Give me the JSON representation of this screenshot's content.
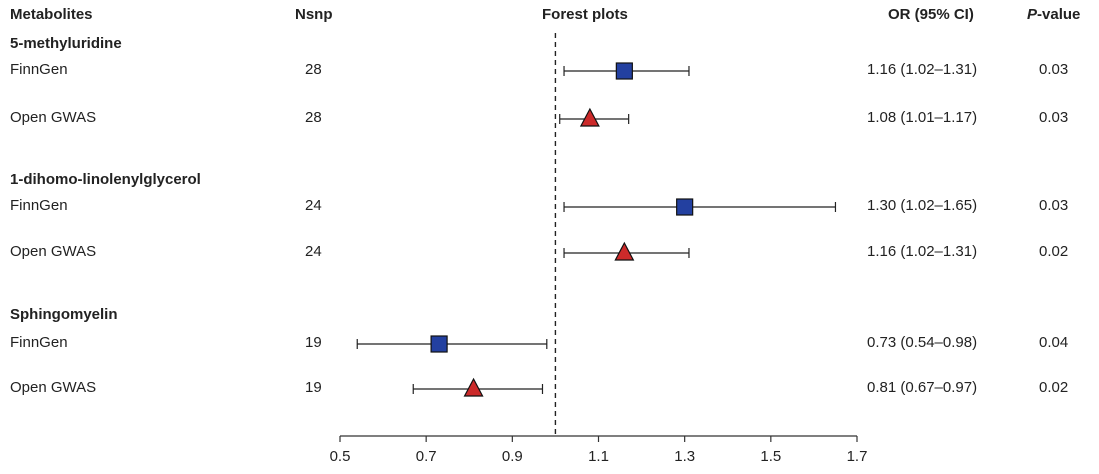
{
  "headers": {
    "metabolites": "Metabolites",
    "nsnp": "Nsnp",
    "forest": "Forest plots",
    "or": "OR (95% CI)",
    "p_italic": "P",
    "p_rest": "-value"
  },
  "groups": [
    {
      "name": "5-methyluridine",
      "rows": [
        {
          "label": "FinnGen",
          "nsnp": "28",
          "or_text": "1.16 (1.02–1.31)",
          "p": "0.03"
        },
        {
          "label": "Open GWAS",
          "nsnp": "28",
          "or_text": "1.08 (1.01–1.17)",
          "p": "0.03"
        }
      ]
    },
    {
      "name": "1-dihomo-linolenylglycerol",
      "rows": [
        {
          "label": "FinnGen",
          "nsnp": "24",
          "or_text": "1.30 (1.02–1.65)",
          "p": "0.03"
        },
        {
          "label": "Open GWAS",
          "nsnp": "24",
          "or_text": "1.16 (1.02–1.31)",
          "p": "0.02"
        }
      ]
    },
    {
      "name": "Sphingomyelin",
      "rows": [
        {
          "label": "FinnGen",
          "nsnp": "19",
          "or_text": "0.73 (0.54–0.98)",
          "p": "0.04"
        },
        {
          "label": "Open GWAS",
          "nsnp": "19",
          "or_text": "0.81 (0.67–0.97)",
          "p": "0.02"
        }
      ]
    }
  ],
  "chart_data": {
    "type": "forest",
    "xlim": [
      0.5,
      1.7
    ],
    "ticks": [
      0.5,
      0.7,
      0.9,
      1.1,
      1.3,
      1.5,
      1.7
    ],
    "reference_line": 1.0,
    "series": [
      {
        "source": "FinnGen",
        "marker": "square",
        "color": "#2340a0"
      },
      {
        "source": "Open GWAS",
        "marker": "triangle",
        "color": "#cc2a2a"
      }
    ],
    "points": [
      {
        "metabolite": "5-methyluridine",
        "source": "FinnGen",
        "or": 1.16,
        "lo": 1.02,
        "hi": 1.31
      },
      {
        "metabolite": "5-methyluridine",
        "source": "Open GWAS",
        "or": 1.08,
        "lo": 1.01,
        "hi": 1.17
      },
      {
        "metabolite": "1-dihomo-linolenylglycerol",
        "source": "FinnGen",
        "or": 1.3,
        "lo": 1.02,
        "hi": 1.65
      },
      {
        "metabolite": "1-dihomo-linolenylglycerol",
        "source": "Open GWAS",
        "or": 1.16,
        "lo": 1.02,
        "hi": 1.31
      },
      {
        "metabolite": "Sphingomyelin",
        "source": "FinnGen",
        "or": 0.73,
        "lo": 0.54,
        "hi": 0.98
      },
      {
        "metabolite": "Sphingomyelin",
        "source": "Open GWAS",
        "or": 0.81,
        "lo": 0.67,
        "hi": 0.97
      }
    ]
  }
}
